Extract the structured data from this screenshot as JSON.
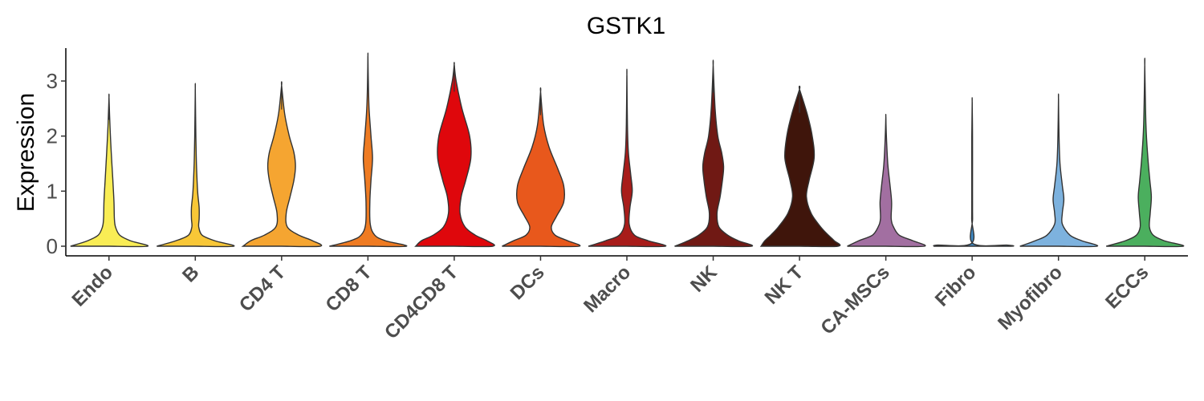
{
  "chart_data": {
    "type": "violin",
    "title": "GSTK1",
    "ylabel": "Expression",
    "xlabel": "",
    "ylim": [
      -0.15,
      3.6
    ],
    "yticks": [
      0,
      1,
      2,
      3
    ],
    "grid": false,
    "legend": "none",
    "categories": [
      {
        "name": "Endo",
        "color": "#F9ED55",
        "max": 2.7,
        "density": [
          [
            0,
            1
          ],
          [
            0.1,
            0.55
          ],
          [
            0.2,
            0.28
          ],
          [
            0.35,
            0.17
          ],
          [
            0.5,
            0.14
          ],
          [
            0.8,
            0.13
          ],
          [
            1.2,
            0.1
          ],
          [
            1.7,
            0.06
          ],
          [
            2.2,
            0.025
          ],
          [
            2.7,
            0
          ]
        ]
      },
      {
        "name": "B",
        "color": "#F8C737",
        "max": 2.85,
        "density": [
          [
            0,
            1
          ],
          [
            0.1,
            0.5
          ],
          [
            0.2,
            0.18
          ],
          [
            0.35,
            0.09
          ],
          [
            0.5,
            0.1
          ],
          [
            0.7,
            0.1
          ],
          [
            1.0,
            0.06
          ],
          [
            1.5,
            0.03
          ],
          [
            2.0,
            0.015
          ],
          [
            2.85,
            0
          ]
        ]
      },
      {
        "name": "CD4 T",
        "color": "#F5A531",
        "max": 2.92,
        "density": [
          [
            0,
            1
          ],
          [
            0.1,
            0.8
          ],
          [
            0.2,
            0.45
          ],
          [
            0.35,
            0.15
          ],
          [
            0.6,
            0.12
          ],
          [
            0.9,
            0.22
          ],
          [
            1.2,
            0.32
          ],
          [
            1.45,
            0.36
          ],
          [
            1.7,
            0.32
          ],
          [
            2.0,
            0.2
          ],
          [
            2.4,
            0.08
          ],
          [
            2.92,
            0
          ]
        ]
      },
      {
        "name": "CD8 T",
        "color": "#EF7B22",
        "max": 3.45,
        "density": [
          [
            0,
            1
          ],
          [
            0.1,
            0.45
          ],
          [
            0.2,
            0.18
          ],
          [
            0.4,
            0.06
          ],
          [
            0.8,
            0.05
          ],
          [
            1.2,
            0.08
          ],
          [
            1.6,
            0.12
          ],
          [
            2.0,
            0.08
          ],
          [
            2.5,
            0.03
          ],
          [
            3.0,
            0.01
          ],
          [
            3.45,
            0
          ]
        ]
      },
      {
        "name": "CD4CD8 T",
        "color": "#DF070C",
        "max": 3.3,
        "density": [
          [
            0,
            1
          ],
          [
            0.1,
            0.85
          ],
          [
            0.2,
            0.55
          ],
          [
            0.35,
            0.28
          ],
          [
            0.6,
            0.15
          ],
          [
            0.9,
            0.18
          ],
          [
            1.2,
            0.3
          ],
          [
            1.6,
            0.43
          ],
          [
            2.0,
            0.4
          ],
          [
            2.5,
            0.2
          ],
          [
            3.0,
            0.05
          ],
          [
            3.3,
            0
          ]
        ]
      },
      {
        "name": "DCs",
        "color": "#E8581C",
        "max": 2.8,
        "density": [
          [
            0,
            1
          ],
          [
            0.1,
            0.7
          ],
          [
            0.2,
            0.38
          ],
          [
            0.35,
            0.28
          ],
          [
            0.55,
            0.42
          ],
          [
            0.8,
            0.6
          ],
          [
            1.1,
            0.6
          ],
          [
            1.4,
            0.45
          ],
          [
            1.8,
            0.22
          ],
          [
            2.2,
            0.08
          ],
          [
            2.8,
            0
          ]
        ]
      },
      {
        "name": "Macro",
        "color": "#A81C1A",
        "max": 3.1,
        "density": [
          [
            0,
            1
          ],
          [
            0.1,
            0.55
          ],
          [
            0.2,
            0.2
          ],
          [
            0.4,
            0.06
          ],
          [
            0.7,
            0.08
          ],
          [
            1.0,
            0.14
          ],
          [
            1.3,
            0.1
          ],
          [
            1.7,
            0.04
          ],
          [
            2.2,
            0.015
          ],
          [
            3.1,
            0
          ]
        ]
      },
      {
        "name": "NK",
        "color": "#701914",
        "max": 3.28,
        "density": [
          [
            0,
            1
          ],
          [
            0.1,
            0.65
          ],
          [
            0.2,
            0.38
          ],
          [
            0.35,
            0.15
          ],
          [
            0.6,
            0.1
          ],
          [
            0.9,
            0.18
          ],
          [
            1.2,
            0.24
          ],
          [
            1.45,
            0.27
          ],
          [
            1.7,
            0.22
          ],
          [
            2.0,
            0.12
          ],
          [
            2.5,
            0.05
          ],
          [
            3.28,
            0
          ]
        ]
      },
      {
        "name": "NK T",
        "color": "#3F150B",
        "max": 2.85,
        "density": [
          [
            0,
            1
          ],
          [
            0.1,
            0.9
          ],
          [
            0.2,
            0.75
          ],
          [
            0.35,
            0.55
          ],
          [
            0.6,
            0.3
          ],
          [
            0.9,
            0.18
          ],
          [
            1.2,
            0.25
          ],
          [
            1.6,
            0.38
          ],
          [
            2.0,
            0.33
          ],
          [
            2.4,
            0.2
          ],
          [
            2.85,
            0
          ]
        ]
      },
      {
        "name": "CA-MSCs",
        "color": "#A26FA1",
        "max": 2.35,
        "density": [
          [
            0,
            1
          ],
          [
            0.1,
            0.7
          ],
          [
            0.2,
            0.35
          ],
          [
            0.35,
            0.2
          ],
          [
            0.5,
            0.14
          ],
          [
            0.8,
            0.15
          ],
          [
            1.1,
            0.11
          ],
          [
            1.5,
            0.05
          ],
          [
            2.0,
            0.015
          ],
          [
            2.35,
            0
          ]
        ]
      },
      {
        "name": "Fibro",
        "color": "#3F88C2",
        "max": 2.62,
        "density": [
          [
            0,
            1
          ],
          [
            0.02,
            0.9
          ],
          [
            0.05,
            0.02
          ],
          [
            0.5,
            0.012
          ],
          [
            1.0,
            0.01
          ],
          [
            2.0,
            0.01
          ],
          [
            2.62,
            0
          ]
        ]
      },
      {
        "name": "Myofibro",
        "color": "#7DB2DE",
        "max": 2.68,
        "density": [
          [
            0,
            1
          ],
          [
            0.1,
            0.6
          ],
          [
            0.2,
            0.3
          ],
          [
            0.4,
            0.1
          ],
          [
            0.6,
            0.1
          ],
          [
            0.85,
            0.14
          ],
          [
            1.1,
            0.1
          ],
          [
            1.5,
            0.04
          ],
          [
            2.0,
            0.015
          ],
          [
            2.68,
            0
          ]
        ]
      },
      {
        "name": "ECCs",
        "color": "#4BAF5E",
        "max": 3.28,
        "density": [
          [
            0,
            1
          ],
          [
            0.1,
            0.5
          ],
          [
            0.2,
            0.22
          ],
          [
            0.35,
            0.12
          ],
          [
            0.6,
            0.14
          ],
          [
            0.9,
            0.17
          ],
          [
            1.2,
            0.13
          ],
          [
            1.6,
            0.08
          ],
          [
            2.2,
            0.03
          ],
          [
            3.28,
            0
          ]
        ]
      }
    ]
  }
}
